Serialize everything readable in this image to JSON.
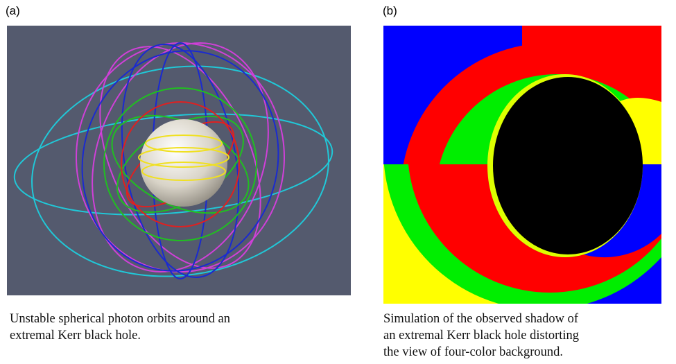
{
  "panels": [
    {
      "label": "(a)",
      "caption_lines": [
        "Unstable spherical photon orbits around an",
        "extremal Kerr black hole."
      ]
    },
    {
      "label": "(b)",
      "caption_lines": [
        "Simulation of the observed shadow of",
        "an extremal Kerr black hole distorting",
        "the view of four-color background."
      ]
    }
  ]
}
